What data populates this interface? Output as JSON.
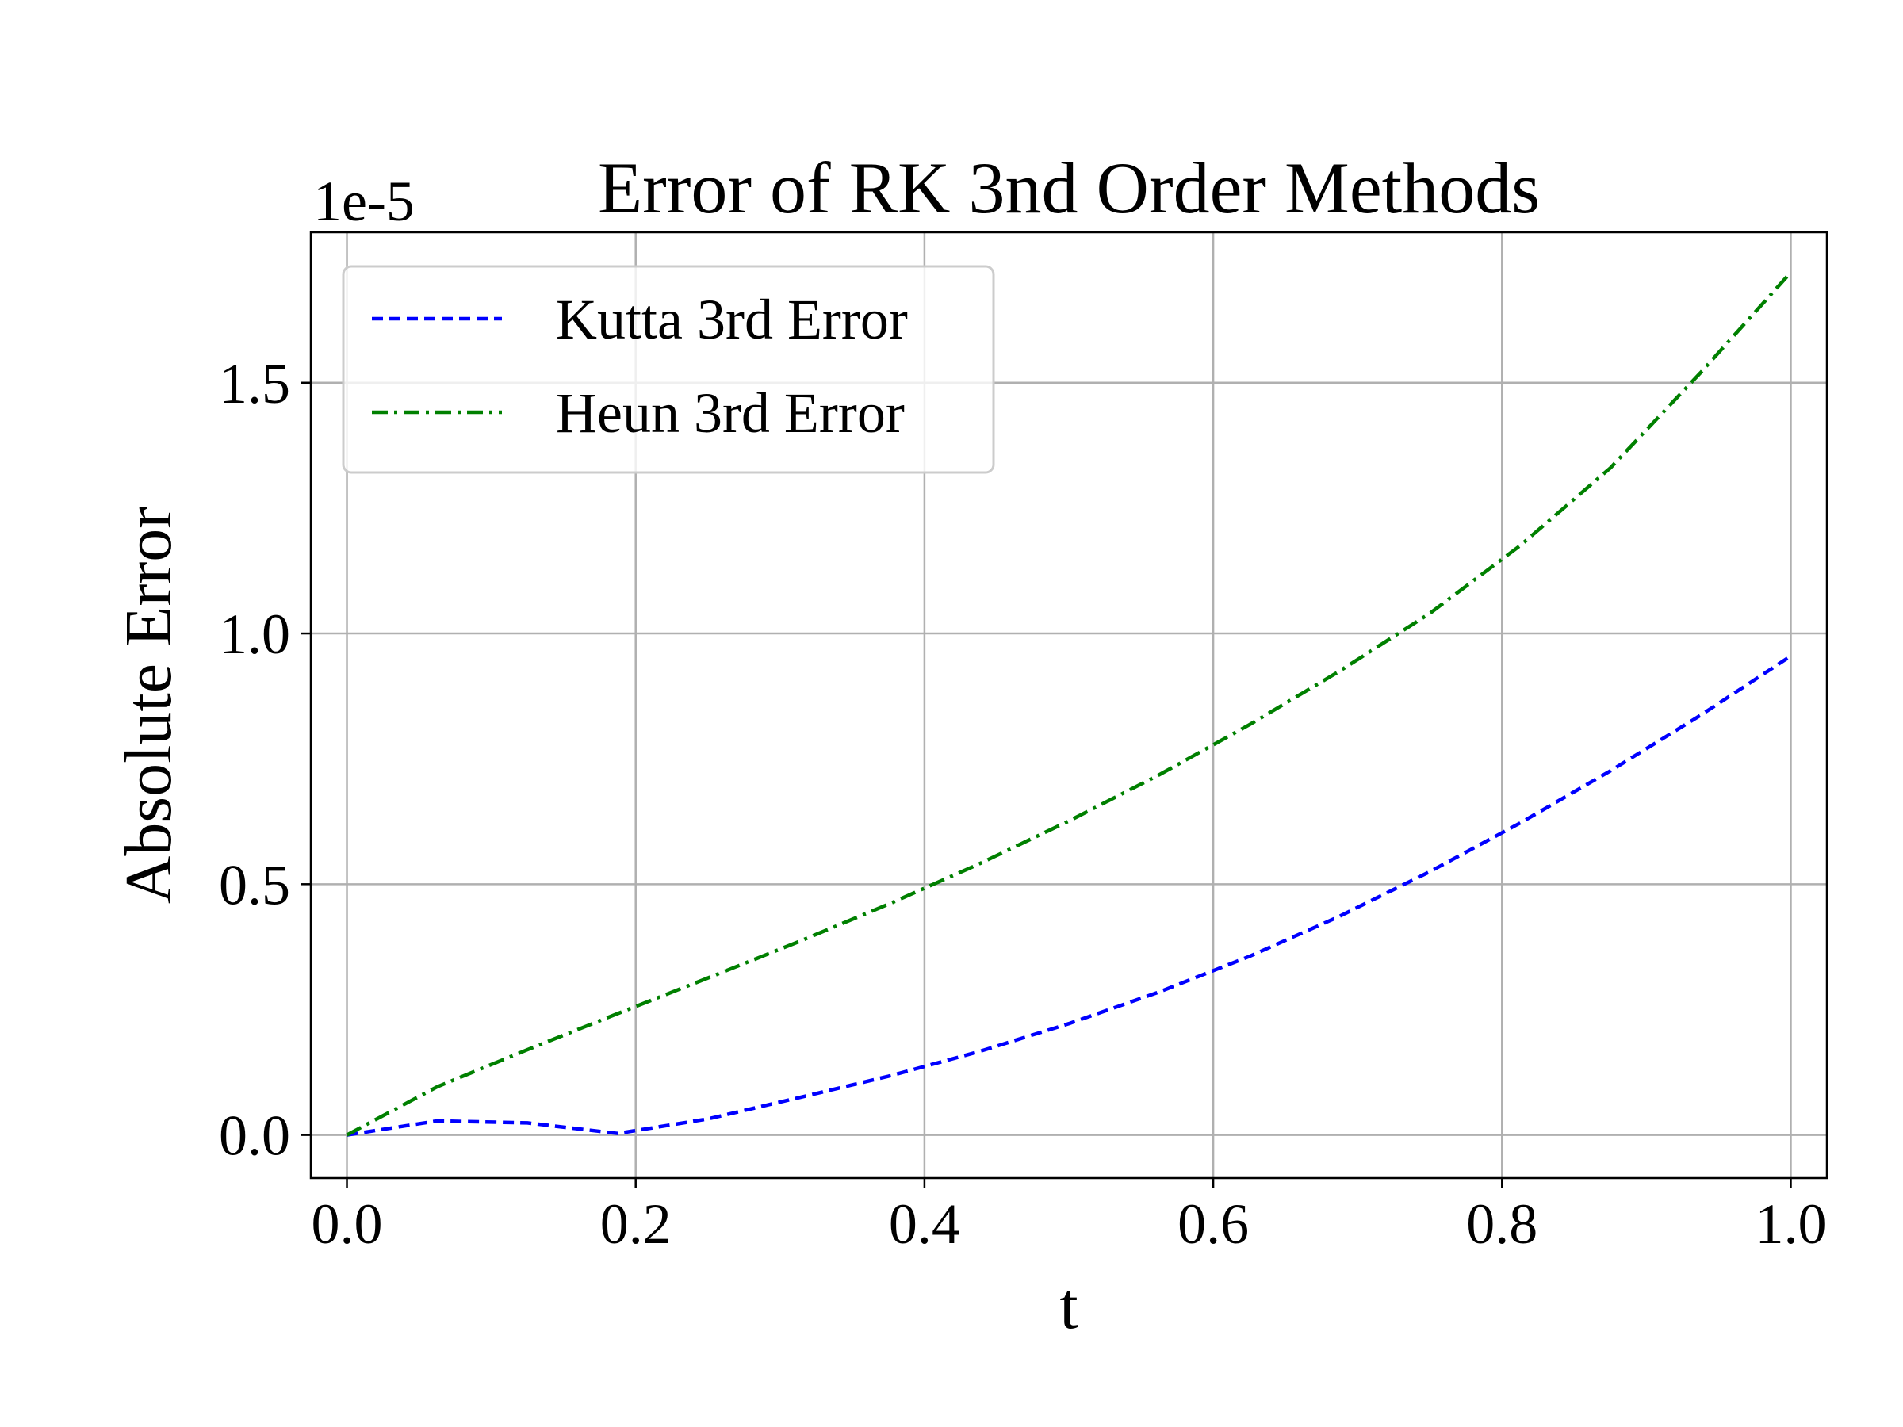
{
  "chart_data": {
    "type": "line",
    "title": "Error of RK 3nd Order Methods",
    "xlabel": "t",
    "ylabel": "Absolute Error",
    "y_offset_label": "1e-5",
    "xlim": [
      -0.025,
      1.025
    ],
    "ylim": [
      -0.086,
      1.8
    ],
    "x_ticks": [
      0.0,
      0.2,
      0.4,
      0.6,
      0.8,
      1.0
    ],
    "x_tick_labels": [
      "0.0",
      "0.2",
      "0.4",
      "0.6",
      "0.8",
      "1.0"
    ],
    "y_ticks": [
      0.0,
      0.5,
      1.0,
      1.5
    ],
    "y_tick_labels": [
      "0.0",
      "0.5",
      "1.0",
      "1.5"
    ],
    "grid": true,
    "legend_position": "upper-left",
    "series": [
      {
        "name": "Kutta 3rd Error",
        "color": "#0000ff",
        "style": "dashed",
        "x": [
          0.0,
          0.0625,
          0.125,
          0.1875,
          0.25,
          0.3125,
          0.375,
          0.4375,
          0.5,
          0.5625,
          0.625,
          0.6875,
          0.75,
          0.8125,
          0.875,
          0.9375,
          1.0
        ],
        "y": [
          0.0,
          0.028,
          0.024,
          0.003,
          0.032,
          0.074,
          0.117,
          0.166,
          0.222,
          0.285,
          0.356,
          0.436,
          0.525,
          0.622,
          0.726,
          0.837,
          0.955
        ]
      },
      {
        "name": "Heun 3rd Error",
        "color": "#008000",
        "style": "dashdot",
        "x": [
          0.0,
          0.0625,
          0.125,
          0.1875,
          0.25,
          0.3125,
          0.375,
          0.4375,
          0.5,
          0.5625,
          0.625,
          0.6875,
          0.75,
          0.8125,
          0.875,
          0.9375,
          1.0
        ],
        "y": [
          0.0,
          0.096,
          0.17,
          0.242,
          0.313,
          0.385,
          0.46,
          0.54,
          0.626,
          0.718,
          0.818,
          0.925,
          1.04,
          1.175,
          1.33,
          1.52,
          1.72
        ]
      }
    ]
  }
}
